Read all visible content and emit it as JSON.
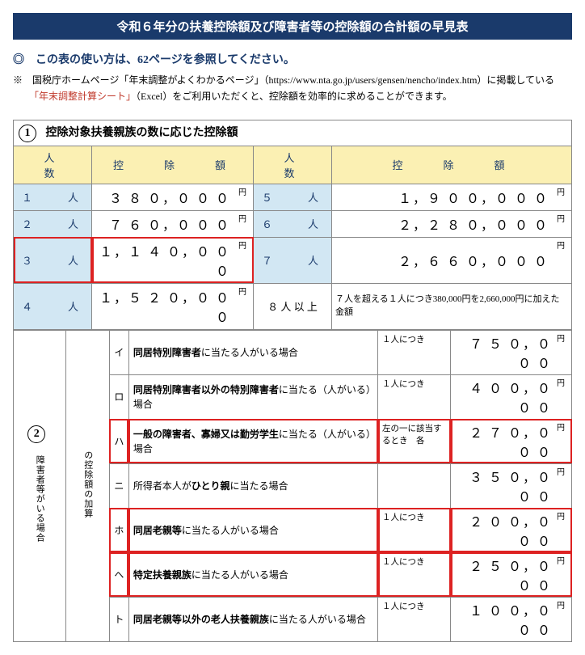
{
  "title": "令和６年分の扶養控除額及び障害者等の控除額の合計額の早見表",
  "usage": "◎　この表の使い方は、62ページを参照してください。",
  "note_prefix": "※　国税庁ホームページ「年末調整がよくわかるページ」（https://www.nta.go.jp/users/gensen/nencho/index.htm）に掲載している",
  "note_link": "「年末調整計算シート」",
  "note_suffix": "（Excel）をご利用いただくと、控除額を効率的に求めることができます。",
  "sec1": {
    "num": "1",
    "title": "控除対象扶養親族の数に応じた控除額",
    "col_people": "人　　　数",
    "col_amount": "控　　除　　額",
    "rows_left": [
      {
        "n": "１",
        "u": "人",
        "amt": "３ ８ ０，０ ０ ０"
      },
      {
        "n": "２",
        "u": "人",
        "amt": "７ ６ ０，０ ０ ０"
      },
      {
        "n": "３",
        "u": "人",
        "amt": "１，１ ４ ０，０ ０ ０",
        "red": true
      },
      {
        "n": "４",
        "u": "人",
        "amt": "１，５ ２ ０，０ ０ ０"
      }
    ],
    "rows_right": [
      {
        "n": "５",
        "u": "人",
        "amt": "１，９ ０ ０，０ ０ ０"
      },
      {
        "n": "６",
        "u": "人",
        "amt": "２，２ ８ ０，０ ０ ０"
      },
      {
        "n": "７",
        "u": "人",
        "amt": "２，６ ６ ０，０ ０ ０"
      },
      {
        "n": "８ 人 以 上",
        "amt": "",
        "note": "７人を超える１人につき380,000円を2,660,000円に加えた金額"
      }
    ]
  },
  "sec2": {
    "num": "2",
    "vlabel1": "障害者等がいる場合",
    "vlabel2": "の控除額の加算",
    "rows": [
      {
        "k": "イ",
        "desc_pre": "",
        "desc_bold": "同居特別障害者",
        "desc_post": "に当たる人がいる場合",
        "pre": "１人につき",
        "amt": "７ ５ ０，０ ０ ０"
      },
      {
        "k": "ロ",
        "desc_pre": "",
        "desc_bold": "同居特別障害者以外の特別障害者",
        "desc_post": "に当たる（人がいる）場合",
        "pre": "１人につき",
        "amt": "４ ０ ０，０ ０ ０"
      },
      {
        "k": "ハ",
        "desc_pre": "",
        "desc_bold": "一般の障害者、寡婦又は勤労学生",
        "desc_post": "に当たる（人がいる）場合",
        "pre": "左の一に該当するとき　各",
        "amt": "２ ７ ０，０ ０ ０",
        "red": true
      },
      {
        "k": "ニ",
        "desc_pre": "所得者本人が",
        "desc_bold": "ひとり親",
        "desc_post": "に当たる場合",
        "pre": "",
        "amt": "３ ５ ０，０ ０ ０"
      },
      {
        "k": "ホ",
        "desc_pre": "",
        "desc_bold": "同居老親等",
        "desc_post": "に当たる人がいる場合",
        "pre": "１人につき",
        "amt": "２ ０ ０，０ ０ ０",
        "red": true
      },
      {
        "k": "ヘ",
        "desc_pre": "",
        "desc_bold": "特定扶養親族",
        "desc_post": "に当たる人がいる場合",
        "pre": "１人につき",
        "amt": "２ ５ ０，０ ０ ０",
        "red": true
      },
      {
        "k": "ト",
        "desc_pre": "",
        "desc_bold": "同居老親等以外の老人扶養親族",
        "desc_post": "に当たる人がいる場合",
        "pre": "１人につき",
        "amt": "１ ０ ０，０ ０ ０"
      }
    ]
  },
  "yen": "円"
}
